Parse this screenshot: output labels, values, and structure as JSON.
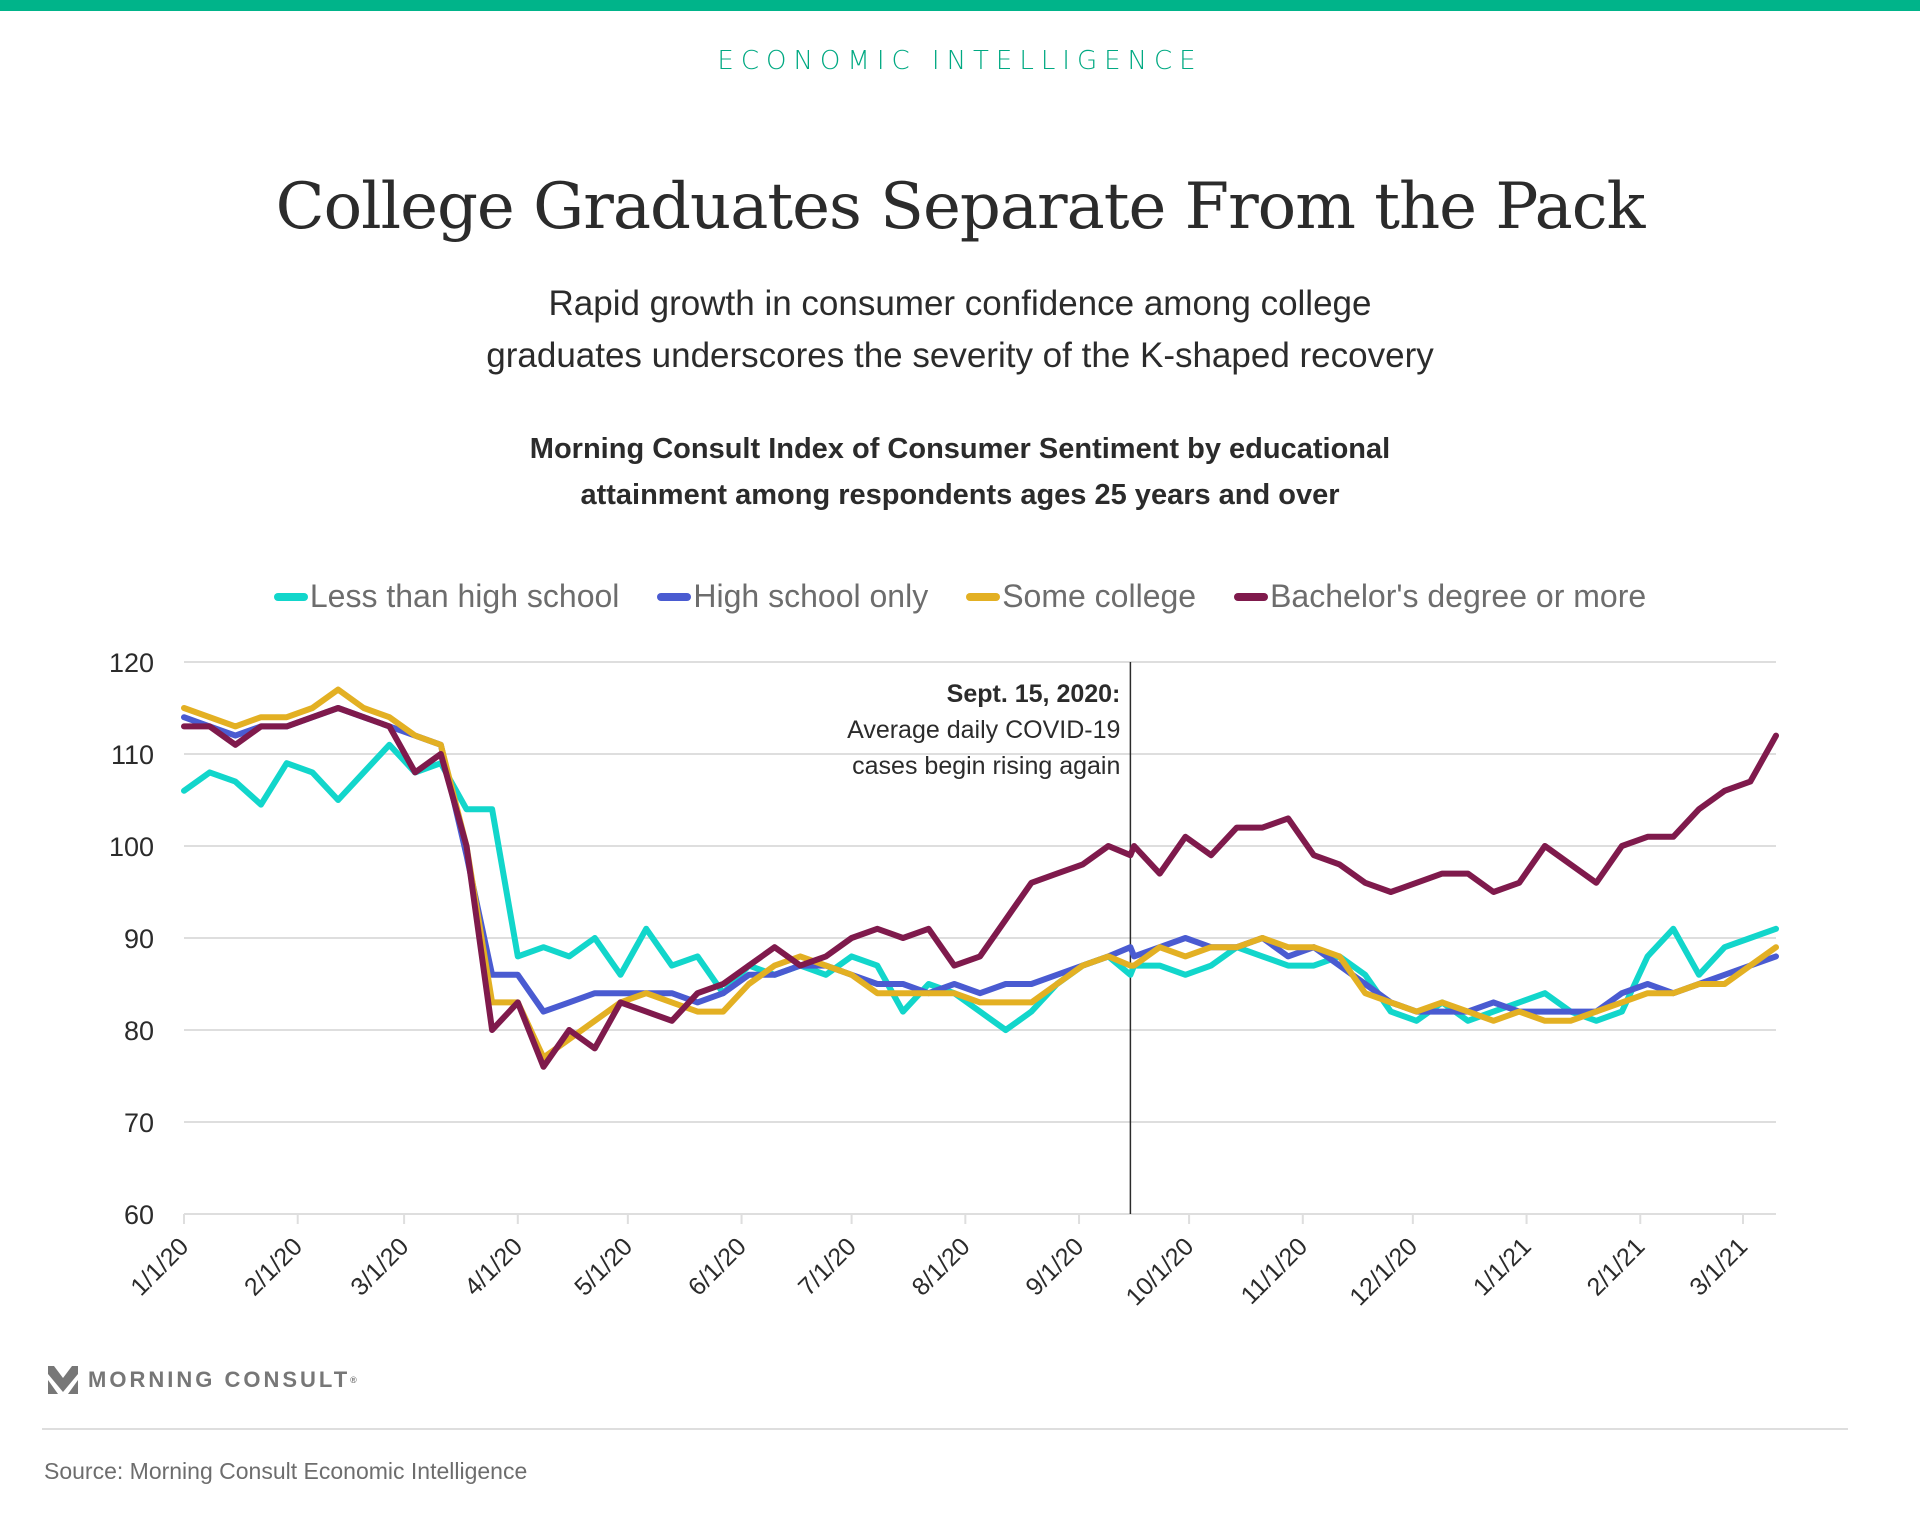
{
  "header": {
    "kicker": "ECONOMIC INTELLIGENCE",
    "title": "College Graduates Separate From the Pack",
    "subtitle_line1": "Rapid growth in consumer confidence among college",
    "subtitle_line2": "graduates underscores the severity of the K-shaped recovery",
    "chart_title_line1": "Morning Consult Index of Consumer Sentiment by educational",
    "chart_title_line2": "attainment among respondents ages 25 years and over"
  },
  "colors": {
    "brand": "#00b48a",
    "less_than_high_school": "#12d6cb",
    "high_school_only": "#4a5bd1",
    "some_college": "#e3b023",
    "bachelors_or_more": "#7f1a4c"
  },
  "chart_data": {
    "type": "line",
    "title": "Morning Consult Index of Consumer Sentiment by educational attainment among respondents ages 25 years and over",
    "xlabel": "",
    "ylabel": "",
    "ylim": [
      60,
      120
    ],
    "yticks": [
      120,
      110,
      100,
      90,
      80,
      70,
      60
    ],
    "xtick_labels": [
      "1/1/20",
      "2/1/20",
      "3/1/20",
      "4/1/20",
      "5/1/20",
      "6/1/20",
      "7/1/20",
      "8/1/20",
      "9/1/20",
      "10/1/20",
      "11/1/20",
      "12/1/20",
      "1/1/21",
      "2/1/21",
      "3/1/21"
    ],
    "xtick_days": [
      0,
      31,
      60,
      91,
      121,
      152,
      182,
      213,
      244,
      274,
      305,
      335,
      366,
      397,
      425
    ],
    "x_unit": "days since 1/1/20",
    "x": [
      0,
      7,
      14,
      21,
      28,
      35,
      42,
      49,
      56,
      63,
      70,
      77,
      84,
      91,
      98,
      105,
      112,
      119,
      126,
      133,
      140,
      147,
      154,
      161,
      168,
      175,
      182,
      189,
      196,
      203,
      210,
      217,
      224,
      231,
      238,
      245,
      252,
      258,
      259,
      266,
      273,
      280,
      287,
      294,
      301,
      308,
      315,
      322,
      329,
      336,
      343,
      350,
      357,
      364,
      371,
      378,
      385,
      392,
      399,
      406,
      413,
      420,
      427,
      434
    ],
    "grid": true,
    "legend": "top",
    "series": [
      {
        "name": "Less than high school",
        "values": [
          106,
          108,
          107,
          104.5,
          109,
          108,
          105,
          108,
          111,
          108,
          109,
          104,
          104,
          88,
          89,
          88,
          90,
          86,
          91,
          87,
          88,
          84,
          87,
          86,
          87,
          86,
          88,
          87,
          82,
          85,
          84,
          82,
          80,
          82,
          85,
          87,
          88,
          86,
          87,
          87,
          86,
          87,
          89,
          88,
          87,
          87,
          88,
          86,
          82,
          81,
          83,
          81,
          82,
          83,
          84,
          82,
          81,
          82,
          88,
          91,
          86,
          89,
          90,
          91
        ]
      },
      {
        "name": "High school only",
        "values": [
          114,
          113,
          112,
          113,
          113,
          114,
          115,
          114,
          113,
          112,
          111,
          99,
          86,
          86,
          82,
          83,
          84,
          84,
          84,
          84,
          83,
          84,
          86,
          86,
          87,
          87,
          86,
          85,
          85,
          84,
          85,
          84,
          85,
          85,
          86,
          87,
          88,
          89,
          88,
          89,
          90,
          89,
          89,
          90,
          88,
          89,
          87,
          85,
          83,
          82,
          82,
          82,
          83,
          82,
          82,
          82,
          82,
          84,
          85,
          84,
          85,
          86,
          87,
          88
        ]
      },
      {
        "name": "Some college",
        "values": [
          115,
          114,
          113,
          114,
          114,
          115,
          117,
          115,
          114,
          112,
          111,
          100,
          83,
          83,
          77,
          79,
          81,
          83,
          84,
          83,
          82,
          82,
          85,
          87,
          88,
          87,
          86,
          84,
          84,
          84,
          84,
          83,
          83,
          83,
          85,
          87,
          88,
          87,
          87,
          89,
          88,
          89,
          89,
          90,
          89,
          89,
          88,
          84,
          83,
          82,
          83,
          82,
          81,
          82,
          81,
          81,
          82,
          83,
          84,
          84,
          85,
          85,
          87,
          89
        ]
      },
      {
        "name": "Bachelor's degree or more",
        "values": [
          113,
          113,
          111,
          113,
          113,
          114,
          115,
          114,
          113,
          108,
          110,
          100,
          80,
          83,
          76,
          80,
          78,
          83,
          82,
          81,
          84,
          85,
          87,
          89,
          87,
          88,
          90,
          91,
          90,
          91,
          87,
          88,
          92,
          96,
          97,
          98,
          100,
          99,
          100,
          97,
          101,
          99,
          102,
          102,
          103,
          99,
          98,
          96,
          95,
          96,
          97,
          97,
          95,
          96,
          100,
          98,
          96,
          100,
          101,
          101,
          104,
          106,
          107,
          112
        ]
      }
    ],
    "annotation": {
      "day": 258,
      "label_bold": "Sept. 15, 2020:",
      "label_line1": "Average daily COVID-19",
      "label_line2": "cases begin rising again"
    }
  },
  "footer": {
    "brand": "MORNING CONSULT",
    "trademark": "®",
    "source": "Source: Morning Consult Economic Intelligence"
  }
}
